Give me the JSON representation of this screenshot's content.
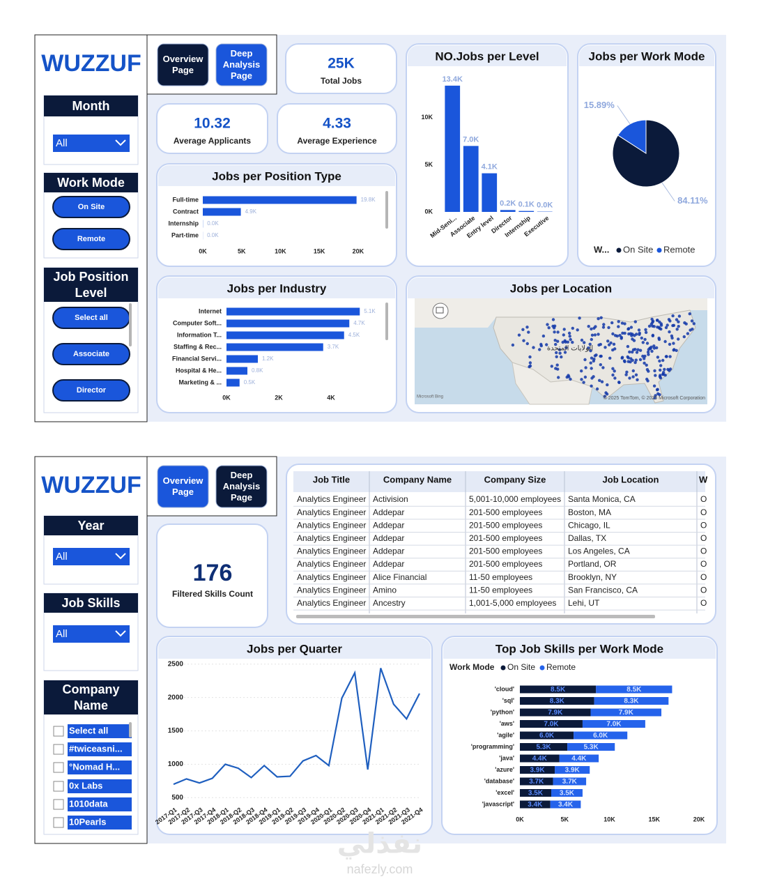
{
  "page1": {
    "logo": "WUZZUF",
    "nav": [
      "Overview Page",
      "Deep Analysis Page"
    ],
    "month_filter": {
      "title": "Month",
      "value": "All"
    },
    "work_mode_filter": {
      "title": "Work Mode",
      "options": [
        "On Site",
        "Remote"
      ]
    },
    "level_filter": {
      "title": "Job Position Level",
      "options": [
        "Select all",
        "Associate",
        "Director"
      ]
    },
    "cards": [
      {
        "value": "25K",
        "label": "Total Jobs"
      },
      {
        "value": 10.32,
        "label": "Average Applicants"
      },
      {
        "value": 4.33,
        "label": "Average Experience"
      }
    ],
    "map": {
      "title": "Jobs per Location",
      "label": "الولايات المتحدة",
      "attribution": "© 2025 TomTom, © 2025 Microsoft Corporation",
      "provider": "Microsoft Bing"
    }
  },
  "page2": {
    "logo": "WUZZUF",
    "nav": [
      "Overview Page",
      "Deep Analysis Page"
    ],
    "year_filter": {
      "title": "Year",
      "value": "All"
    },
    "skills_filter": {
      "title": "Job Skills",
      "value": "All"
    },
    "company_filter": {
      "title": "Company Name",
      "options": [
        "Select all",
        "#twiceasni...",
        "°Nomad H...",
        "0x Labs",
        "1010data",
        "10Pearls"
      ]
    },
    "card": {
      "value": 176,
      "label": "Filtered Skills Count"
    },
    "table": {
      "columns": [
        "Job Title",
        "Company Name",
        "Company Size",
        "Job Location",
        "W"
      ],
      "rows": [
        [
          "Analytics Engineer",
          "Activision",
          "5,001-10,000 employees",
          "Santa Monica, CA",
          "O"
        ],
        [
          "Analytics Engineer",
          "Addepar",
          "201-500 employees",
          "Boston, MA",
          "O"
        ],
        [
          "Analytics Engineer",
          "Addepar",
          "201-500 employees",
          "Chicago, IL",
          "O"
        ],
        [
          "Analytics Engineer",
          "Addepar",
          "201-500 employees",
          "Dallas, TX",
          "O"
        ],
        [
          "Analytics Engineer",
          "Addepar",
          "201-500 employees",
          "Los Angeles, CA",
          "O"
        ],
        [
          "Analytics Engineer",
          "Addepar",
          "201-500 employees",
          "Portland, OR",
          "O"
        ],
        [
          "Analytics Engineer",
          "Alice Financial",
          "11-50 employees",
          "Brooklyn, NY",
          "O"
        ],
        [
          "Analytics Engineer",
          "Amino",
          "11-50 employees",
          "San Francisco, CA",
          "O"
        ],
        [
          "Analytics Engineer",
          "Ancestry",
          "1,001-5,000 employees",
          "Lehi, UT",
          "O"
        ]
      ]
    }
  },
  "chart_data": [
    {
      "type": "bar",
      "orientation": "horizontal",
      "title": "Jobs per Position Type",
      "categories": [
        "Full-time",
        "Contract",
        "Internship",
        "Part-time"
      ],
      "values": [
        19800,
        4900,
        20,
        10
      ],
      "value_labels": [
        "19.8K",
        "4.9K",
        "0.0K",
        "0.0K"
      ],
      "color": "#1a56db",
      "xlim": [
        0,
        21000
      ],
      "xticks": [
        {
          "value": 0,
          "label": "0K"
        },
        {
          "value": 5000,
          "label": "5K"
        },
        {
          "value": 10000,
          "label": "10K"
        },
        {
          "value": 15000,
          "label": "15K"
        },
        {
          "value": 20000,
          "label": "20K"
        }
      ]
    },
    {
      "type": "bar",
      "orientation": "vertical",
      "title": "NO.Jobs per Level",
      "categories": [
        "Mid-Seni...",
        "Associate",
        "Entry level",
        "Director",
        "Internship",
        "Executive"
      ],
      "values": [
        13400,
        7000,
        4100,
        200,
        100,
        30
      ],
      "value_labels": [
        "13.4K",
        "7.0K",
        "4.1K",
        "0.2K",
        "0.1K",
        "0.0K"
      ],
      "color": "#1a56db",
      "ylim": [
        0,
        14500
      ],
      "yticks": [
        {
          "value": 0,
          "label": "0K"
        },
        {
          "value": 5000,
          "label": "5K"
        },
        {
          "value": 10000,
          "label": "10K"
        }
      ]
    },
    {
      "type": "pie",
      "title": "Jobs per Work Mode",
      "legend_title": "W...",
      "categories": [
        "On Site",
        "Remote"
      ],
      "values": [
        84.11,
        15.89
      ],
      "value_labels": [
        "84.11%",
        "15.89%"
      ],
      "colors": [
        "#0b1a3a",
        "#1a56db"
      ]
    },
    {
      "type": "bar",
      "orientation": "horizontal",
      "title": "Jobs per Industry",
      "categories": [
        "Internet",
        "Computer Soft...",
        "Information T...",
        "Staffing & Rec...",
        "Financial Servi...",
        "Hospital & He...",
        "Marketing & ..."
      ],
      "values": [
        5100,
        4700,
        4500,
        3700,
        1200,
        800,
        500
      ],
      "value_labels": [
        "5.1K",
        "4.7K",
        "4.5K",
        "3.7K",
        "1.2K",
        "0.8K",
        "0.5K"
      ],
      "color": "#1a56db",
      "xlim": [
        0,
        5600
      ],
      "xticks": [
        {
          "value": 0,
          "label": "0K"
        },
        {
          "value": 2000,
          "label": "2K"
        },
        {
          "value": 4000,
          "label": "4K"
        }
      ]
    },
    {
      "type": "line",
      "title": "Jobs per Quarter",
      "categories": [
        "2017-Q1",
        "2017-Q2",
        "2017-Q3",
        "2017-Q4",
        "2018-Q1",
        "2018-Q2",
        "2018-Q3",
        "2018-Q4",
        "2019-Q1",
        "2019-Q2",
        "2019-Q3",
        "2019-Q4",
        "2020-Q1",
        "2020-Q2",
        "2020-Q3",
        "2020-Q4",
        "2021-Q1",
        "2021-Q2",
        "2021-Q3",
        "2021-Q4"
      ],
      "values": [
        700,
        780,
        720,
        790,
        1000,
        940,
        800,
        980,
        810,
        820,
        1050,
        1130,
        980,
        1990,
        2370,
        920,
        2440,
        1900,
        1680,
        2060
      ],
      "color": "#1f5fbf",
      "ylim": [
        450,
        2550
      ],
      "yticks": [
        500,
        1000,
        1500,
        2000,
        2500
      ]
    },
    {
      "type": "stacked_bar",
      "orientation": "horizontal",
      "title": "Top Job Skills per Work Mode",
      "legend_title": "Work Mode",
      "categories": [
        "'cloud'",
        "'sql'",
        "'python'",
        "'aws'",
        "'agile'",
        "'programming'",
        "'java'",
        "'azure'",
        "'database'",
        "'excel'",
        "'javascript'"
      ],
      "series": [
        {
          "name": "On Site",
          "color": "#0b1a3a",
          "values": [
            8500,
            8300,
            7900,
            7000,
            6000,
            5300,
            4400,
            3900,
            3700,
            3500,
            3400
          ],
          "value_labels": [
            "8.5K",
            "8.3K",
            "7.9K",
            "7.0K",
            "6.0K",
            "5.3K",
            "4.4K",
            "3.9K",
            "3.7K",
            "3.5K",
            "3.4K"
          ]
        },
        {
          "name": "Remote",
          "color": "#2563eb",
          "values": [
            8500,
            8300,
            7900,
            7000,
            6000,
            5300,
            4400,
            3900,
            3700,
            3500,
            3400
          ],
          "value_labels": [
            "8.5K",
            "8.3K",
            "7.9K",
            "7.0K",
            "6.0K",
            "5.3K",
            "4.4K",
            "3.9K",
            "3.7K",
            "3.5K",
            "3.4K"
          ]
        }
      ],
      "xlim": [
        0,
        20000
      ],
      "xticks": [
        {
          "value": 0,
          "label": "0K"
        },
        {
          "value": 5000,
          "label": "5K"
        },
        {
          "value": 10000,
          "label": "10K"
        },
        {
          "value": 15000,
          "label": "15K"
        },
        {
          "value": 20000,
          "label": "20K"
        }
      ]
    }
  ],
  "watermark": {
    "brand": "نفذلي",
    "site": "nafezly.com"
  }
}
